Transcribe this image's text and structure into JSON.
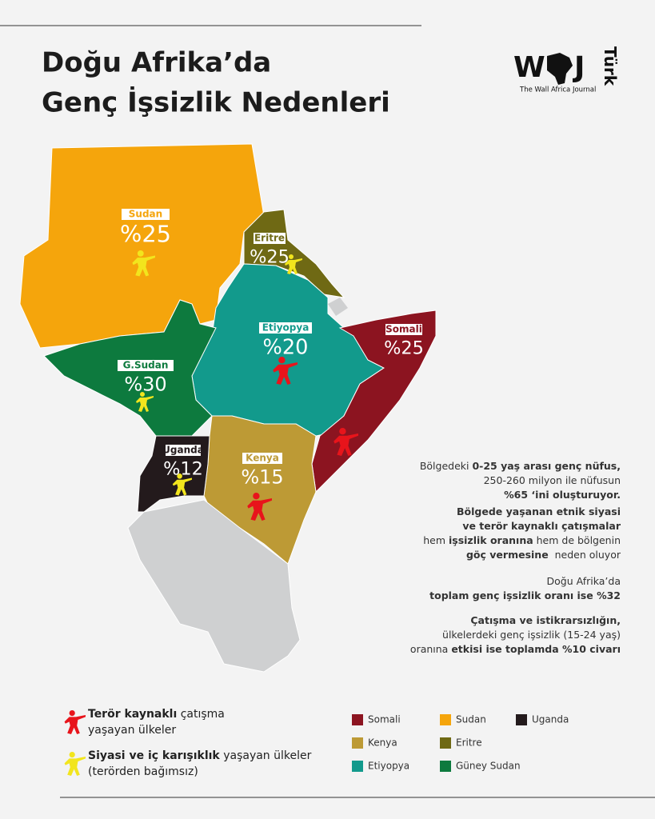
{
  "header": {
    "title_line1": "Doğu Afrika’da",
    "title_line2": "Genç İşsizlik Nedenleri"
  },
  "logo": {
    "left": "W",
    "right": "J",
    "side": "Türk",
    "subtitle": "The Wall Africa Journal"
  },
  "icons": [
    {
      "color": "#e8141b",
      "lines": [
        [
          {
            "text": "Terör kaynaklı",
            "bold": true
          },
          {
            "text": " çatışma",
            "bold": false
          }
        ],
        [
          {
            "text": "yaşayan ülkeler",
            "bold": false
          }
        ]
      ]
    },
    {
      "color": "#f2e51d",
      "lines": [
        [
          {
            "text": "Siyasi ve iç karışıklık",
            "bold": true
          },
          {
            "text": " yaşayan ülkeler",
            "bold": false
          }
        ],
        [
          {
            "text": "(terörden bağımsız)",
            "bold": false
          }
        ]
      ]
    }
  ],
  "legend": [
    {
      "name": "Somali",
      "color": "#8c1420"
    },
    {
      "name": "Sudan",
      "color": "#f5a50c"
    },
    {
      "name": "Uganda",
      "color": "#231a1c"
    },
    {
      "name": "Kenya",
      "color": "#bd9a35"
    },
    {
      "name": "Eritre",
      "color": "#6f6914"
    },
    {
      "name": "Etiyopya",
      "color": "#129a8c"
    },
    {
      "name": "Güney Sudan",
      "color": "#0d7a3e"
    }
  ],
  "regions": [
    {
      "name": "Sudan",
      "value": "%25"
    },
    {
      "name": "Eritre",
      "value": "%25"
    },
    {
      "name": "Etiyopya",
      "value": "%20"
    },
    {
      "name": "Somali",
      "value": "%25"
    },
    {
      "name": "G.Sudan",
      "value": "%30"
    },
    {
      "name": "Uganda",
      "value": "%12"
    },
    {
      "name": "Kenya",
      "value": "%15"
    }
  ],
  "notes": [
    [
      [
        {
          "text": "Bölgedeki ",
          "bold": false
        },
        {
          "text": "0-25 yaş arası genç nüfus,",
          "bold": true
        }
      ],
      [
        {
          "text": "250-260 milyon ile nüfusun",
          "bold": false
        }
      ],
      [
        {
          "text": "%65 ‘ini oluşturuyor.",
          "bold": true
        }
      ]
    ],
    [
      [
        {
          "text": "Bölgede yaşanan etnik siyasi",
          "bold": true
        }
      ],
      [
        {
          "text": "ve terör kaynaklı çatışmalar",
          "bold": true
        }
      ],
      [
        {
          "text": "hem ",
          "bold": false
        },
        {
          "text": "işsizlik oranına",
          "bold": true
        },
        {
          "text": " hem de bölgenin",
          "bold": false
        }
      ],
      [
        {
          "text": "göç vermesine",
          "bold": true
        },
        {
          "text": "  neden oluyor",
          "bold": false
        }
      ]
    ],
    [
      [
        {
          "text": "Doğu Afrika’da",
          "bold": false
        }
      ],
      [
        {
          "text": "toplam genç işsizlik oranı ise %32",
          "bold": true
        }
      ]
    ],
    [
      [
        {
          "text": "Çatışma ve istikrarsızlığın,",
          "bold": true
        }
      ],
      [
        {
          "text": "ülkelerdeki genç işsizlik (15-24 yaş)",
          "bold": false
        }
      ],
      [
        {
          "text": "oranına ",
          "bold": false
        },
        {
          "text": "etkisi ise toplamda %10 civarı",
          "bold": true
        }
      ]
    ]
  ]
}
